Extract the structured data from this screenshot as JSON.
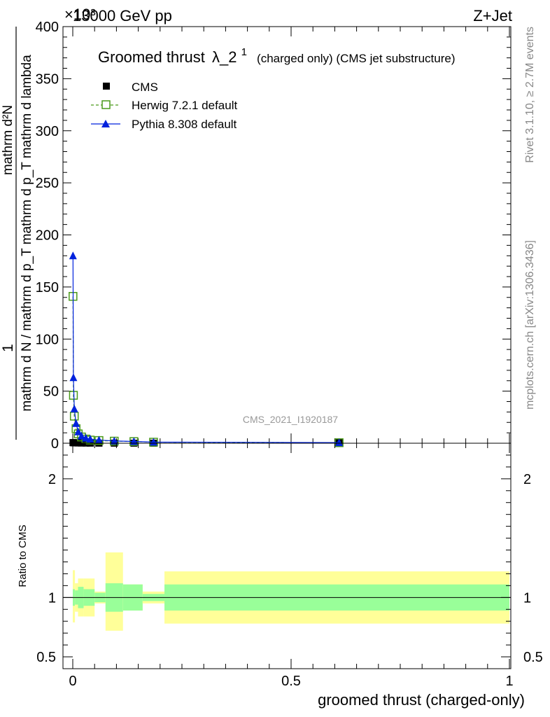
{
  "header": {
    "energy": "13000 GeV pp",
    "process": "Z+Jet",
    "exponent": "×10³"
  },
  "side_text": {
    "rivet": "Rivet 3.1.10, ≥ 2.7M events",
    "mcplots": "mcplots.cern.ch [arXiv:1306.3436]"
  },
  "analysis_id": "CMS_2021_I1920187",
  "title": {
    "main": "Groomed thrust",
    "symbol": "λ_2",
    "superscript": "1",
    "sub": "(charged only) (CMS jet substructure)"
  },
  "legend": {
    "cms": "CMS",
    "herwig": "Herwig 7.2.1 default",
    "pythia": "Pythia 8.308 default"
  },
  "colors": {
    "data": "#000000",
    "herwig": "#4a9a1a",
    "pythia": "#0022dd",
    "band_inner": "#99ff99",
    "band_outer": "#ffff99"
  },
  "chart_data": [
    {
      "type": "line",
      "panel": "main",
      "ylabel_numerator": "1",
      "ylabel_denominator": "mathrm d N / mathrm d p_T mathrm d p_T mathrm d lambda",
      "ylabel_top": "mathrm d²N",
      "xlim": [
        0,
        1
      ],
      "ylim": [
        0,
        400
      ],
      "y_multiplier": 1000,
      "yticks": [
        "0",
        "50",
        "100",
        "150",
        "200",
        "250",
        "300",
        "350",
        "400"
      ],
      "series": [
        {
          "name": "CMS",
          "marker": "square",
          "x": [
            0.0005,
            0.0015,
            0.0035,
            0.0075,
            0.0125,
            0.02,
            0.03,
            0.04,
            0.06,
            0.095,
            0.14,
            0.185,
            0.61
          ],
          "y": [
            0.6,
            0.5,
            0.4,
            0.3,
            0.25,
            0.2,
            0.15,
            0.1,
            0.08,
            0.06,
            0.04,
            0.03,
            0.5
          ]
        },
        {
          "name": "Herwig 7.2.1 default",
          "marker": "open-square",
          "x": [
            0.0005,
            0.0015,
            0.0035,
            0.0075,
            0.0125,
            0.02,
            0.03,
            0.04,
            0.06,
            0.095,
            0.14,
            0.185,
            0.61
          ],
          "y": [
            141,
            46,
            26,
            14,
            9,
            6,
            4,
            3,
            2.6,
            2.0,
            1.6,
            1.0,
            0.5
          ]
        },
        {
          "name": "Pythia 8.308 default",
          "marker": "filled-triangle",
          "x": [
            0.0005,
            0.0015,
            0.0035,
            0.0075,
            0.0125,
            0.02,
            0.03,
            0.04,
            0.06,
            0.095,
            0.14,
            0.185,
            0.61
          ],
          "y": [
            180,
            63,
            33,
            19,
            11,
            7,
            5,
            4,
            3.0,
            2.2,
            1.7,
            1.1,
            0.6
          ]
        }
      ]
    },
    {
      "type": "area",
      "panel": "ratio",
      "ylabel": "Ratio to CMS",
      "xlabel": "groomed thrust (charged-only)",
      "xlim": [
        0,
        1
      ],
      "ylim": [
        0.4,
        2.3
      ],
      "yticks": [
        "0.5",
        "1",
        "2"
      ],
      "xticks": [
        "0",
        "0.5",
        "1"
      ],
      "bands": [
        {
          "x0": 0.0,
          "x1": 0.005,
          "inner": [
            0.93,
            1.07
          ],
          "outer": [
            0.79,
            1.23
          ]
        },
        {
          "x0": 0.005,
          "x1": 0.012,
          "inner": [
            0.94,
            1.06
          ],
          "outer": [
            0.88,
            1.12
          ]
        },
        {
          "x0": 0.012,
          "x1": 0.025,
          "inner": [
            0.91,
            1.09
          ],
          "outer": [
            0.84,
            1.16
          ]
        },
        {
          "x0": 0.025,
          "x1": 0.05,
          "inner": [
            0.93,
            1.07
          ],
          "outer": [
            0.84,
            1.16
          ]
        },
        {
          "x0": 0.05,
          "x1": 0.075,
          "inner": [
            0.96,
            1.04
          ],
          "outer": [
            0.95,
            1.05
          ]
        },
        {
          "x0": 0.075,
          "x1": 0.115,
          "inner": [
            0.88,
            1.12
          ],
          "outer": [
            0.72,
            1.38
          ]
        },
        {
          "x0": 0.115,
          "x1": 0.16,
          "inner": [
            0.89,
            1.11
          ],
          "outer": [
            0.89,
            1.11
          ]
        },
        {
          "x0": 0.16,
          "x1": 0.21,
          "inner": [
            0.97,
            1.03
          ],
          "outer": [
            0.95,
            1.05
          ]
        },
        {
          "x0": 0.21,
          "x1": 1.0,
          "inner": [
            0.89,
            1.11
          ],
          "outer": [
            0.78,
            1.22
          ]
        }
      ]
    }
  ]
}
